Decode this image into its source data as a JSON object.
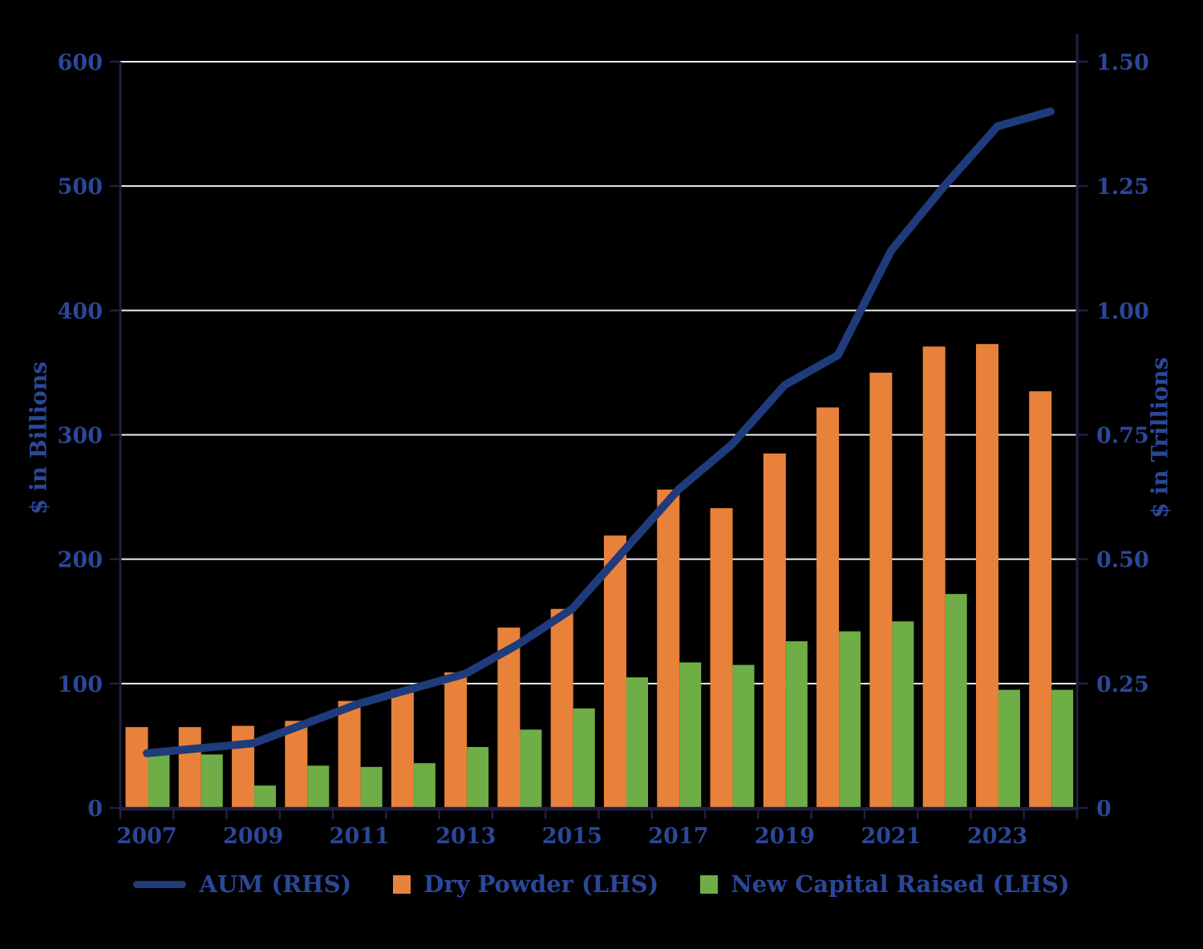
{
  "chart_data": {
    "type": "combo-bar-line",
    "title": "",
    "categories": [
      "2007",
      "2008",
      "2009",
      "2010",
      "2011",
      "2012",
      "2013",
      "2014",
      "2015",
      "2016",
      "2017",
      "2018",
      "2019",
      "2020",
      "2021",
      "2022",
      "2023",
      "2024"
    ],
    "series": [
      {
        "name": "AUM (RHS)",
        "type": "line",
        "axis": "right",
        "values": [
          0.11,
          0.12,
          0.13,
          0.17,
          0.21,
          0.24,
          0.27,
          0.33,
          0.4,
          0.52,
          0.64,
          0.73,
          0.85,
          0.91,
          1.12,
          1.25,
          1.37,
          1.4
        ]
      },
      {
        "name": "Dry Powder (LHS)",
        "type": "bar",
        "axis": "left",
        "values": [
          65,
          65,
          66,
          70,
          86,
          95,
          109,
          145,
          160,
          219,
          256,
          241,
          285,
          322,
          350,
          371,
          373,
          335
        ]
      },
      {
        "name": "New Capital Raised (LHS)",
        "type": "bar",
        "axis": "left",
        "values": [
          43,
          43,
          18,
          34,
          33,
          36,
          49,
          63,
          80,
          105,
          117,
          115,
          134,
          142,
          150,
          172,
          95,
          95
        ]
      }
    ],
    "left_axis": {
      "title": "$ in Billions",
      "min": 0,
      "max": 600,
      "tick_step": 100,
      "tick_labels": [
        "0",
        "100",
        "200",
        "300",
        "400",
        "500",
        "600"
      ]
    },
    "right_axis": {
      "title": "$ in Trillions",
      "min": 0,
      "max": 1.5,
      "tick_step": 0.25,
      "tick_labels": [
        "0",
        "0.25",
        "0.50",
        "0.75",
        "1.00",
        "1.25",
        "1.50"
      ]
    },
    "x_axis": {
      "visible_labels": [
        "2007",
        "2009",
        "2011",
        "2013",
        "2015",
        "2017",
        "2019",
        "2021",
        "2023"
      ]
    },
    "grid": true,
    "legend_position": "bottom"
  },
  "legend": {
    "items": [
      {
        "label": "AUM (RHS)",
        "swatch": "line"
      },
      {
        "label": "Dry Powder (LHS)",
        "swatch": "square"
      },
      {
        "label": "New Capital Raised (LHS)",
        "swatch": "square"
      }
    ]
  },
  "colors": {
    "aum_line": "#1F3B7B",
    "dry_powder": "#E8823B",
    "new_capital": "#6FAD46",
    "axis_text": "#2B4799",
    "grid": "#F0F0F0",
    "spine": "#221E44",
    "background": "#000000"
  }
}
